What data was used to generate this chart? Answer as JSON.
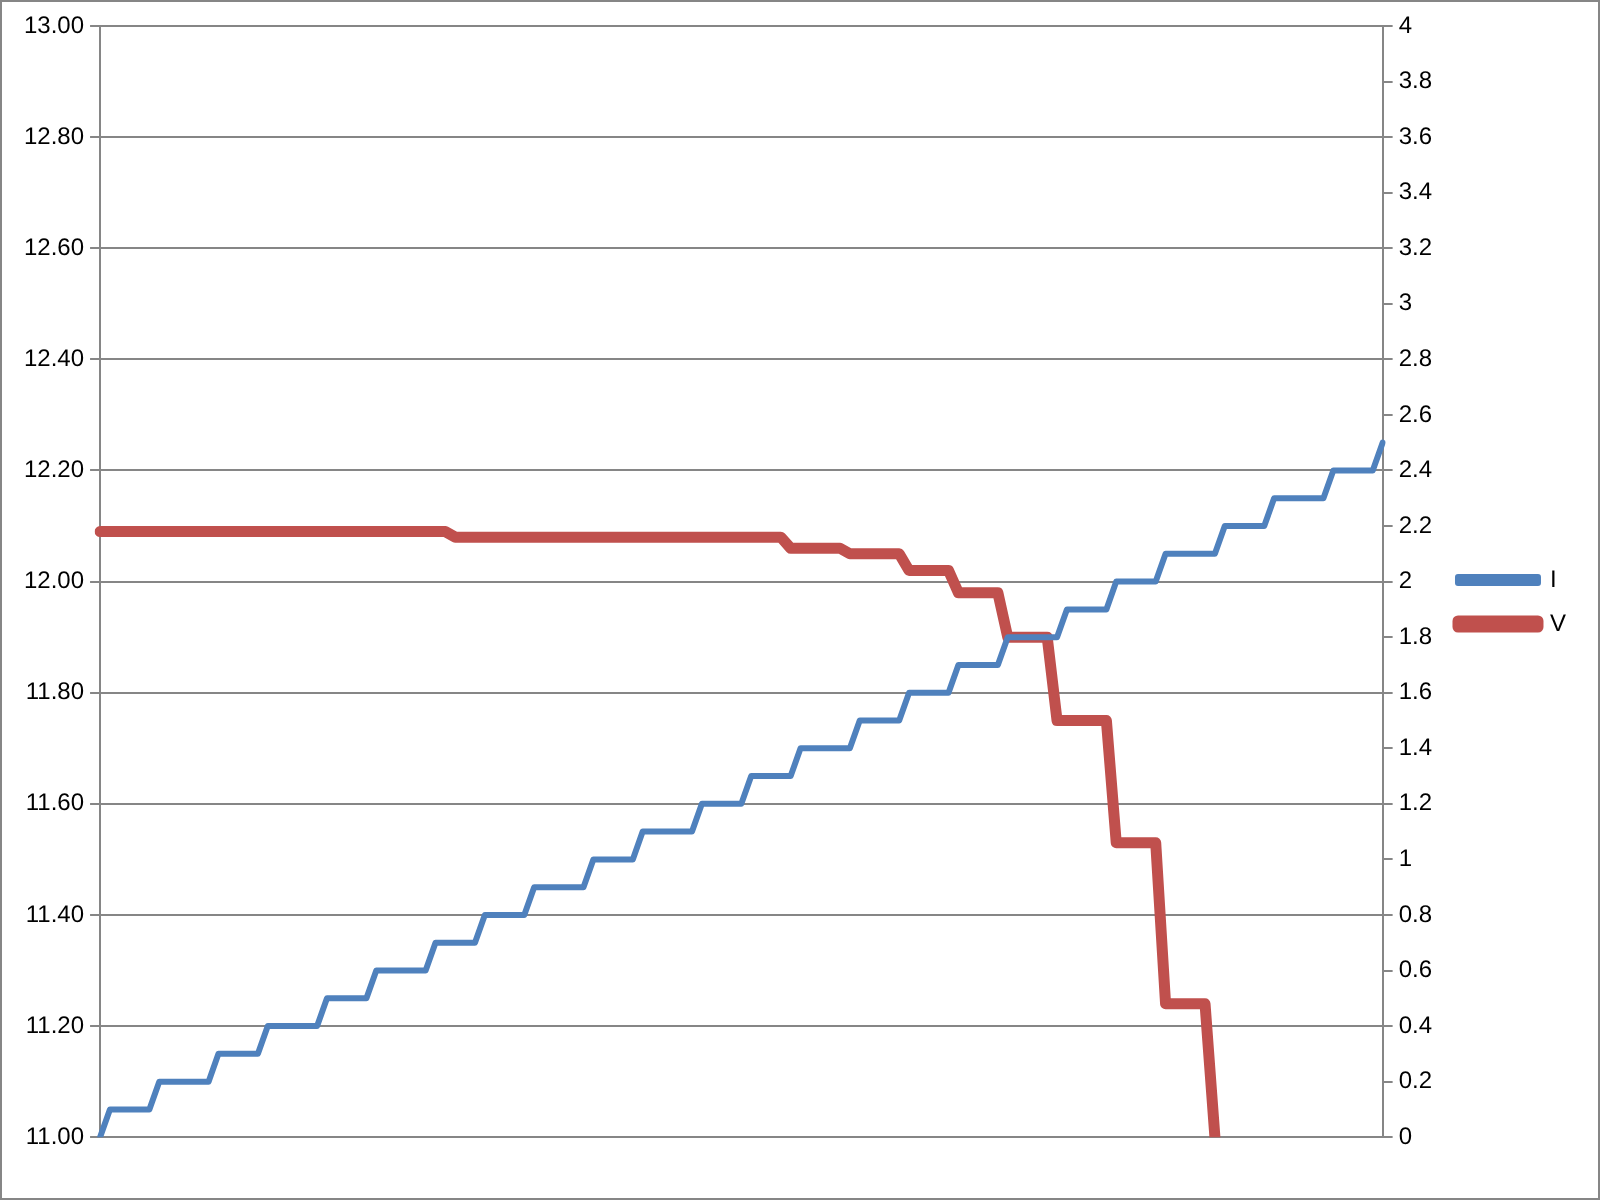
{
  "chart_data": {
    "type": "line",
    "categories": [
      null,
      null,
      null,
      null,
      null,
      null,
      null,
      null,
      null,
      null,
      null,
      null,
      null,
      null,
      null,
      null,
      null,
      null,
      null,
      null,
      null,
      null,
      null,
      null,
      null,
      null,
      null,
      null,
      null,
      null,
      null,
      null,
      null,
      null,
      null,
      null,
      null,
      null,
      null,
      null,
      null,
      null,
      null,
      null,
      null,
      null,
      null,
      null,
      null,
      null,
      null,
      null,
      null,
      null,
      null,
      null,
      null,
      null,
      null,
      null,
      null,
      null,
      null,
      null,
      null,
      null,
      null,
      null,
      null,
      null,
      null,
      null,
      null,
      null,
      null,
      null,
      null,
      null,
      null,
      null,
      null,
      null,
      null,
      null,
      null,
      null,
      null,
      null,
      null,
      null,
      null,
      null,
      null,
      null,
      null,
      null,
      null,
      null,
      null,
      null,
      null,
      null,
      null,
      null,
      null,
      null,
      null,
      null,
      null,
      null,
      null,
      null,
      null,
      null,
      null,
      null,
      null,
      null,
      null,
      null,
      null,
      null,
      null,
      null,
      null,
      null,
      null,
      null,
      null,
      null,
      null
    ],
    "series": [
      {
        "name": "V",
        "color": "#c0504d",
        "values": [
          12.09,
          12.09,
          12.09,
          12.09,
          12.09,
          12.09,
          12.09,
          12.09,
          12.09,
          12.09,
          12.09,
          12.09,
          12.09,
          12.09,
          12.09,
          12.09,
          12.09,
          12.09,
          12.09,
          12.09,
          12.09,
          12.09,
          12.09,
          12.09,
          12.09,
          12.09,
          12.09,
          12.09,
          12.09,
          12.09,
          12.09,
          12.09,
          12.09,
          12.09,
          12.09,
          12.09,
          12.08,
          12.08,
          12.08,
          12.08,
          12.08,
          12.08,
          12.08,
          12.08,
          12.08,
          12.08,
          12.08,
          12.08,
          12.08,
          12.08,
          12.08,
          12.08,
          12.08,
          12.08,
          12.08,
          12.08,
          12.08,
          12.08,
          12.08,
          12.08,
          12.08,
          12.08,
          12.08,
          12.08,
          12.08,
          12.08,
          12.08,
          12.08,
          12.08,
          12.08,
          12.06,
          12.06,
          12.06,
          12.06,
          12.06,
          12.06,
          12.05,
          12.05,
          12.05,
          12.05,
          12.05,
          12.05,
          12.02,
          12.02,
          12.02,
          12.02,
          12.02,
          11.98,
          11.98,
          11.98,
          11.98,
          11.98,
          11.9,
          11.9,
          11.9,
          11.9,
          11.9,
          11.75,
          11.75,
          11.75,
          11.75,
          11.75,
          11.75,
          11.53,
          11.53,
          11.53,
          11.53,
          11.53,
          11.24,
          11.24,
          11.24,
          11.24,
          11.24,
          11,
          null,
          null,
          null,
          null,
          null,
          null,
          null,
          null,
          null,
          null,
          null,
          null,
          null,
          null,
          null,
          null,
          null
        ]
      },
      {
        "name": "I",
        "color": "#4f81bd",
        "axis": "y2",
        "values": [
          0,
          0.1,
          0.1,
          0.1,
          0.1,
          0.1,
          0.2,
          0.2,
          0.2,
          0.2,
          0.2,
          0.2,
          0.3,
          0.3,
          0.3,
          0.3,
          0.3,
          0.4,
          0.4,
          0.4,
          0.4,
          0.4,
          0.4,
          0.5,
          0.5,
          0.5,
          0.5,
          0.5,
          0.6,
          0.6,
          0.6,
          0.6,
          0.6,
          0.6,
          0.7,
          0.7,
          0.7,
          0.7,
          0.7,
          0.8,
          0.8,
          0.8,
          0.8,
          0.8,
          0.9,
          0.9,
          0.9,
          0.9,
          0.9,
          0.9,
          1,
          1,
          1,
          1,
          1,
          1.1,
          1.1,
          1.1,
          1.1,
          1.1,
          1.1,
          1.2,
          1.2,
          1.2,
          1.2,
          1.2,
          1.3,
          1.3,
          1.3,
          1.3,
          1.3,
          1.4,
          1.4,
          1.4,
          1.4,
          1.4,
          1.4,
          1.5,
          1.5,
          1.5,
          1.5,
          1.5,
          1.6,
          1.6,
          1.6,
          1.6,
          1.6,
          1.7,
          1.7,
          1.7,
          1.7,
          1.7,
          1.8,
          1.8,
          1.8,
          1.8,
          1.8,
          1.8,
          1.9,
          1.9,
          1.9,
          1.9,
          1.9,
          2,
          2,
          2,
          2,
          2,
          2.1,
          2.1,
          2.1,
          2.1,
          2.1,
          2.1,
          2.2,
          2.2,
          2.2,
          2.2,
          2.2,
          2.3,
          2.3,
          2.3,
          2.3,
          2.3,
          2.3,
          2.4,
          2.4,
          2.4,
          2.4,
          2.4,
          2.5
        ]
      }
    ],
    "ylim": [
      11,
      13
    ],
    "yticks": [
      {
        "value": 11,
        "label": "11.00"
      },
      {
        "value": 11.2,
        "label": "11.20"
      },
      {
        "value": 11.4,
        "label": "11.40"
      },
      {
        "value": 11.6,
        "label": "11.60"
      },
      {
        "value": 11.8,
        "label": "11.80"
      },
      {
        "value": 12,
        "label": "12.00"
      },
      {
        "value": 12.2,
        "label": "12.20"
      },
      {
        "value": 12.4,
        "label": "12.40"
      },
      {
        "value": 12.6,
        "label": "12.60"
      },
      {
        "value": 12.8,
        "label": "12.80"
      },
      {
        "value": 13,
        "label": "13.00"
      }
    ],
    "y2lim": [
      0,
      4
    ],
    "y2ticks": [
      0,
      0.2,
      0.4,
      0.6,
      0.8,
      1,
      1.2,
      1.4,
      1.6,
      1.8,
      2,
      2.2,
      2.4,
      2.6,
      2.8,
      3,
      3.2,
      3.4,
      3.6,
      3.8,
      4
    ],
    "grid": "y",
    "legend": "right",
    "marker": "none",
    "line_style": "solid"
  }
}
